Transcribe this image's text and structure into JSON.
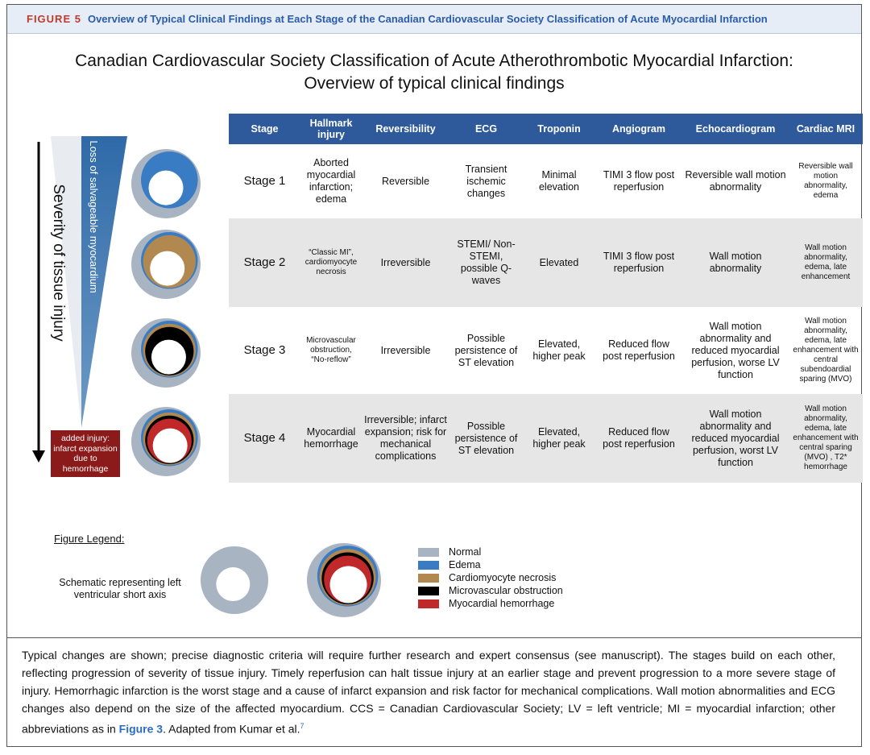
{
  "header": {
    "label": "FIGURE 5",
    "title": "Overview of Typical Clinical Findings at Each Stage of the Canadian Cardiovascular Society Classification of Acute Myocardial Infarction"
  },
  "figure": {
    "title_line1": "Canadian Cardiovascular Society Classification of Acute Atherothrombotic Myocardial Infarction:",
    "title_line2": "Overview of typical clinical findings",
    "axis_label": "Severity of tissue injury",
    "triangle_label": "Loss of salvageable myocardium",
    "added_injury": "added injury: infarct expansion due to hemorrhage",
    "table": {
      "columns": [
        "Stage",
        "Hallmark injury",
        "Reversibility",
        "ECG",
        "Troponin",
        "Angiogram",
        "Echocardiogram",
        "Cardiac MRI"
      ],
      "rows": [
        [
          "Stage 1",
          "Aborted myocardial infarction; edema",
          "Reversible",
          "Transient ischemic changes",
          "Minimal elevation",
          "TIMI 3 flow post reperfusion",
          "Reversible wall motion abnormality",
          "Reversible wall motion abnormality, edema"
        ],
        [
          "Stage 2",
          "“Classic MI”, cardiomyocyte necrosis",
          "Irreversible",
          "STEMI/ Non-STEMI, possible Q-waves",
          "Elevated",
          "TIMI 3 flow post reperfusion",
          "Wall motion abnormality",
          "Wall motion abnormality, edema, late enhancement"
        ],
        [
          "Stage 3",
          "Microvascular obstruction, “No-reflow”",
          "Irreversible",
          "Possible persistence of ST elevation",
          "Elevated, higher peak",
          "Reduced flow post reperfusion",
          "Wall motion abnormality and reduced myocardial perfusion, worse LV function",
          "Wall motion abnormality, edema, late enhancement with central subendoardial sparing (MVO)"
        ],
        [
          "Stage 4",
          "Myocardial hemorrhage",
          "Irreversible; infarct expansion; risk for mechanical complications",
          "Possible persistence of ST elevation",
          "Elevated, higher peak",
          "Reduced flow post reperfusion",
          "Wall motion abnormality and reduced myocardial perfusion, worst LV function",
          "Wall motion abnormality, edema, late enhancement with central sparing (MVO) , T2* hemorrhage"
        ]
      ]
    }
  },
  "legend": {
    "title": "Figure Legend:",
    "schematic": "Schematic representing left ventricular short axis",
    "items": [
      {
        "name": "Normal",
        "color": "#a9b4c2"
      },
      {
        "name": "Edema",
        "color": "#3a7cc4"
      },
      {
        "name": "Cardiomyocyte necrosis",
        "color": "#b08850"
      },
      {
        "name": "Microvascular obstruction",
        "color": "#000000"
      },
      {
        "name": "Myocardial hemorrhage",
        "color": "#c0282a"
      }
    ]
  },
  "caption": {
    "text": "Typical changes are shown; precise diagnostic criteria will require further research and expert consensus (see manuscript). The stages build on each other, reflecting progression of severity of tissue injury. Timely reperfusion can halt tissue injury at an earlier stage and prevent progression to a more severe stage of injury. Hemorrhagic infarction is the worst stage and a cause of infarct expansion and risk factor for mechanical complications. Wall motion abnormalities and ECG changes also depend on the size of the affected myocardium. CCS = Canadian Cardiovascular Society; LV = left ventricle; MI = myocardial infarction; other abbreviations as in",
    "link": "Figure 3",
    "after": ". Adapted from Kumar et al.",
    "ref": "7"
  }
}
